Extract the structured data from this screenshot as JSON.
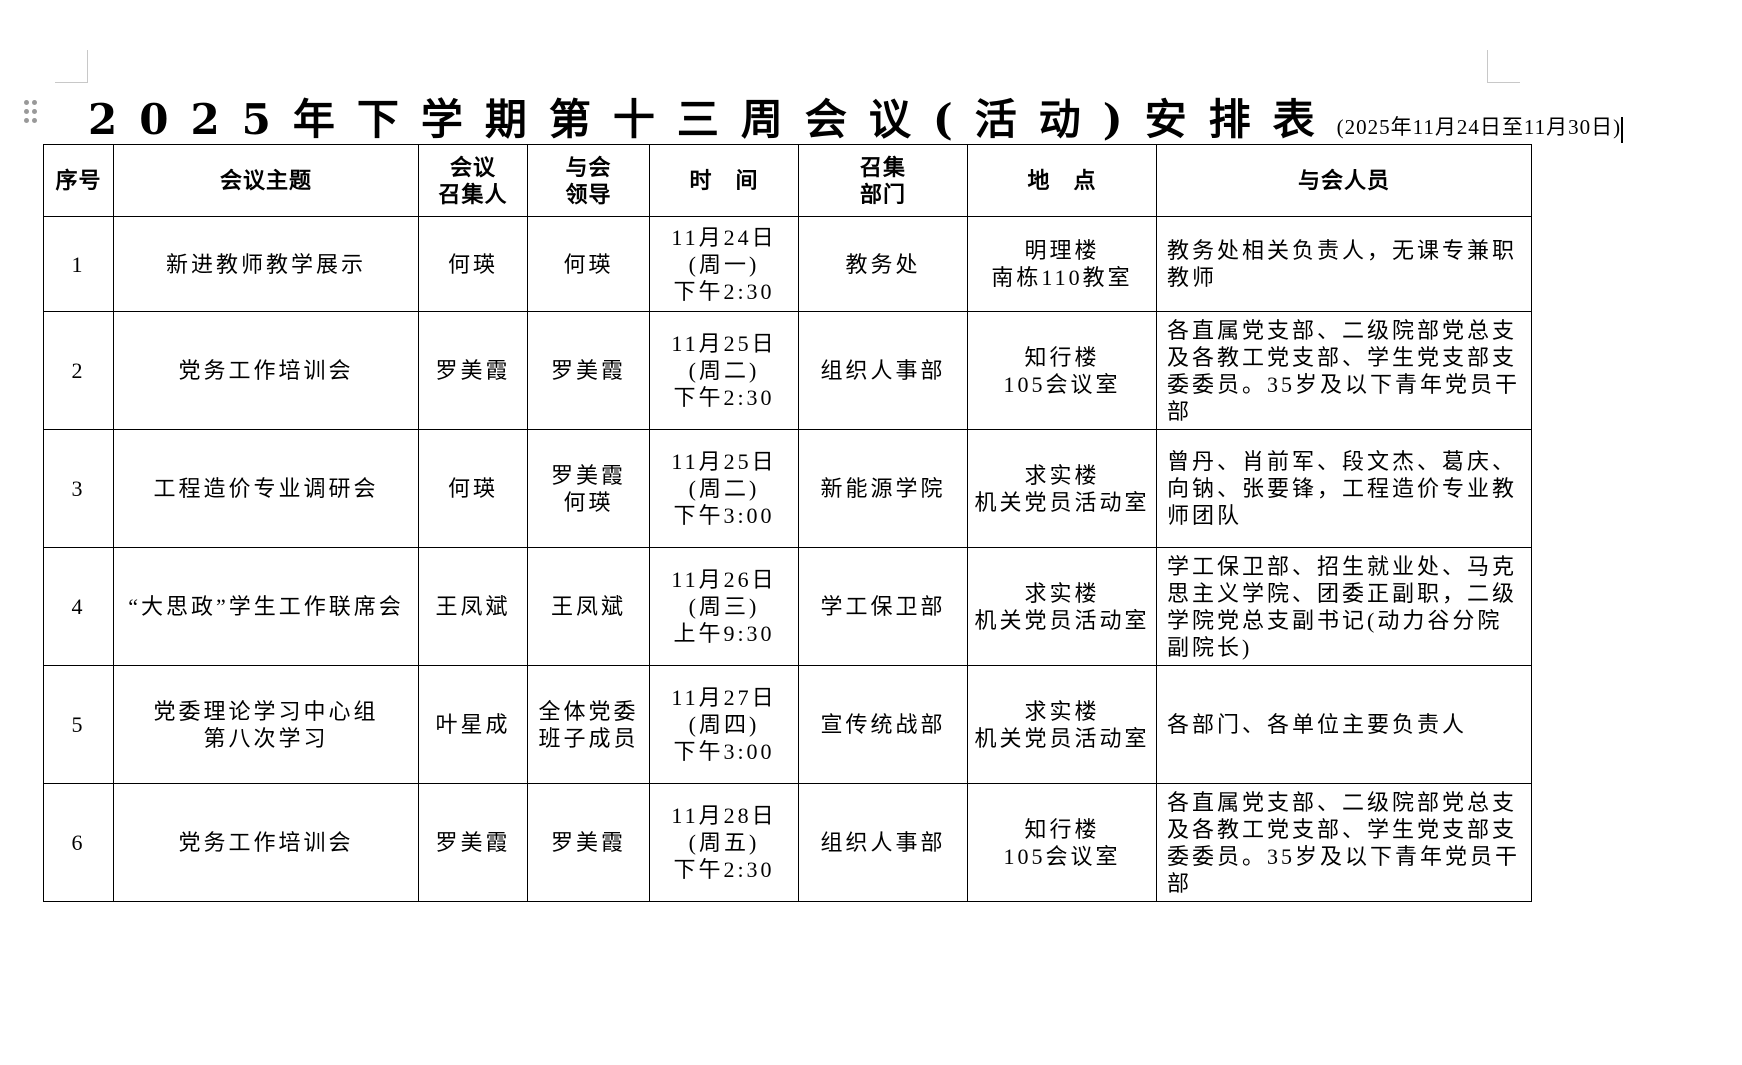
{
  "title": {
    "main": "2025年下学期第十三周会议(活动)安排表",
    "sub": "(2025年11月24日至11月30日)"
  },
  "headers": [
    "序号",
    "会议主题",
    "会议\n召集人",
    "与会\n领导",
    "时　间",
    "召集\n部门",
    "地　点",
    "与会人员"
  ],
  "rows": [
    {
      "no": "1",
      "topic": "新进教师教学展示",
      "convener": "何瑛",
      "leader": "何瑛",
      "time": [
        "11月24日",
        "(周一)",
        "下午2:30"
      ],
      "dept": "教务处",
      "place": [
        "明理楼",
        "南栋110教室"
      ],
      "attendees": "教务处相关负责人，无课专兼职教师"
    },
    {
      "no": "2",
      "topic": "党务工作培训会",
      "convener": "罗美霞",
      "leader": "罗美霞",
      "time": [
        "11月25日",
        "(周二)",
        "下午2:30"
      ],
      "dept": "组织人事部",
      "place": [
        "知行楼",
        "105会议室"
      ],
      "attendees": "各直属党支部、二级院部党总支及各教工党支部、学生党支部支委委员。35岁及以下青年党员干部"
    },
    {
      "no": "3",
      "topic": "工程造价专业调研会",
      "convener": "何瑛",
      "leader": "罗美霞\n何瑛",
      "time": [
        "11月25日",
        "(周二)",
        "下午3:00"
      ],
      "dept": "新能源学院",
      "place": [
        "求实楼",
        "机关党员活动室"
      ],
      "attendees": "曾丹、肖前军、段文杰、葛庆、向钠、张要锋，工程造价专业教师团队"
    },
    {
      "no": "4",
      "topic": "“大思政”学生工作联席会",
      "convener": "王凤斌",
      "leader": "王凤斌",
      "time": [
        "11月26日",
        "(周三)",
        "上午9:30"
      ],
      "dept": "学工保卫部",
      "place": [
        "求实楼",
        "机关党员活动室"
      ],
      "attendees": "学工保卫部、招生就业处、马克思主义学院、团委正副职，二级学院党总支副书记(动力谷分院副院长)"
    },
    {
      "no": "5",
      "topic": "党委理论学习中心组\n第八次学习",
      "convener": "叶星成",
      "leader": "全体党委\n班子成员",
      "time": [
        "11月27日",
        "(周四)",
        "下午3:00"
      ],
      "dept": "宣传统战部",
      "place": [
        "求实楼",
        "机关党员活动室"
      ],
      "attendees": "各部门、各单位主要负责人"
    },
    {
      "no": "6",
      "topic": "党务工作培训会",
      "convener": "罗美霞",
      "leader": "罗美霞",
      "time": [
        "11月28日",
        "(周五)",
        "下午2:30"
      ],
      "dept": "组织人事部",
      "place": [
        "知行楼",
        "105会议室"
      ],
      "attendees": "各直属党支部、二级院部党总支及各教工党支部、学生党支部支委委员。35岁及以下青年党员干部"
    }
  ]
}
